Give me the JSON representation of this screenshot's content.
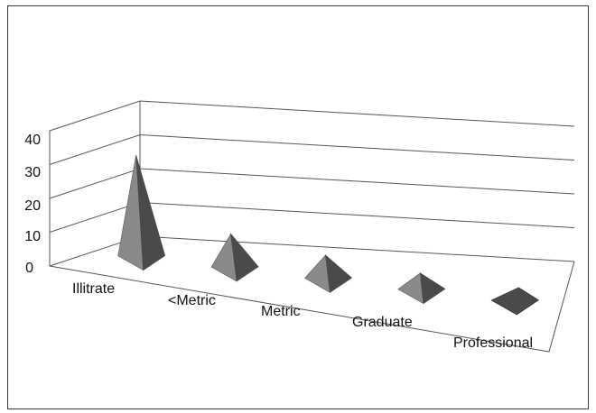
{
  "chart_data": {
    "type": "bar",
    "bar_shape": "3d-pyramid",
    "categories": [
      "Illitrate",
      "<Metric",
      "Metric",
      "Graduate",
      "Professional"
    ],
    "values": [
      30,
      10,
      7,
      5,
      0.5
    ],
    "yticks": [
      "0",
      "10",
      "20",
      "30",
      "40"
    ],
    "ylim": [
      0,
      40
    ],
    "grid": true,
    "legend": "none",
    "colors": {
      "face_light": "#8a8a8a",
      "face_dark": "#4a4a4a",
      "grid": "#555555"
    }
  }
}
